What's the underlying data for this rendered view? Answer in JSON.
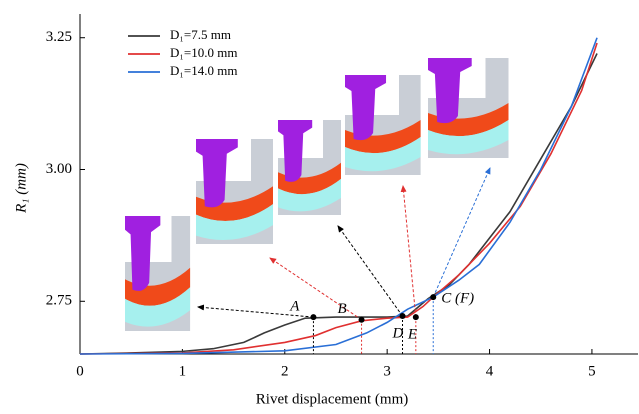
{
  "chart_data": {
    "type": "line",
    "xlabel": "Rivet displacement (mm)",
    "ylabel": "R₁ (mm)",
    "xlim": [
      0,
      5.45
    ],
    "ylim": [
      2.65,
      3.295
    ],
    "xticks": [
      0,
      1,
      2,
      3,
      4,
      5
    ],
    "yticks": [
      2.75,
      {
        "value": 3,
        "label": "3.00"
      },
      3.25
    ],
    "legend": "upper left",
    "series": [
      {
        "name": "D₁=7.5 mm",
        "color": "#3a3a3a",
        "x": [
          0,
          0.5,
          1,
          1.3,
          1.6,
          1.8,
          2.0,
          2.2,
          2.5,
          2.8,
          3.0,
          3.2,
          3.4,
          3.6,
          3.8,
          4.0,
          4.2,
          4.5,
          4.8,
          5.05
        ],
        "values": [
          2.65,
          2.652,
          2.655,
          2.66,
          2.672,
          2.69,
          2.705,
          2.718,
          2.72,
          2.72,
          2.72,
          2.722,
          2.755,
          2.78,
          2.82,
          2.87,
          2.92,
          3.02,
          3.12,
          3.22
        ]
      },
      {
        "name": "D₁=10.0 mm",
        "color": "#e03030",
        "x": [
          0,
          1,
          1.5,
          2,
          2.3,
          2.5,
          2.75,
          3.0,
          3.2,
          3.35,
          3.45,
          3.7,
          4.0,
          4.3,
          4.6,
          4.9,
          5.05
        ],
        "values": [
          2.65,
          2.652,
          2.658,
          2.672,
          2.685,
          2.7,
          2.713,
          2.718,
          2.72,
          2.74,
          2.758,
          2.8,
          2.86,
          2.93,
          3.03,
          3.15,
          3.24
        ]
      },
      {
        "name": "D₁=14.0 mm",
        "color": "#2a6fd6",
        "x": [
          0,
          1,
          2,
          2.5,
          2.8,
          3.0,
          3.2,
          3.45,
          3.7,
          3.9,
          4.2,
          4.5,
          4.8,
          5.05
        ],
        "values": [
          2.65,
          2.651,
          2.656,
          2.668,
          2.69,
          2.71,
          2.735,
          2.758,
          2.79,
          2.82,
          2.9,
          3.0,
          3.12,
          3.25
        ]
      }
    ],
    "annotations": [
      {
        "label": "A",
        "x": 2.28,
        "y": 2.72
      },
      {
        "label": "B",
        "x": 2.75,
        "y": 2.715
      },
      {
        "label": "D",
        "x": 3.15,
        "y": 2.722
      },
      {
        "label": "E",
        "x": 3.28,
        "y": 2.72
      },
      {
        "label": "C (F)",
        "x": 3.45,
        "y": 2.758
      }
    ]
  }
}
